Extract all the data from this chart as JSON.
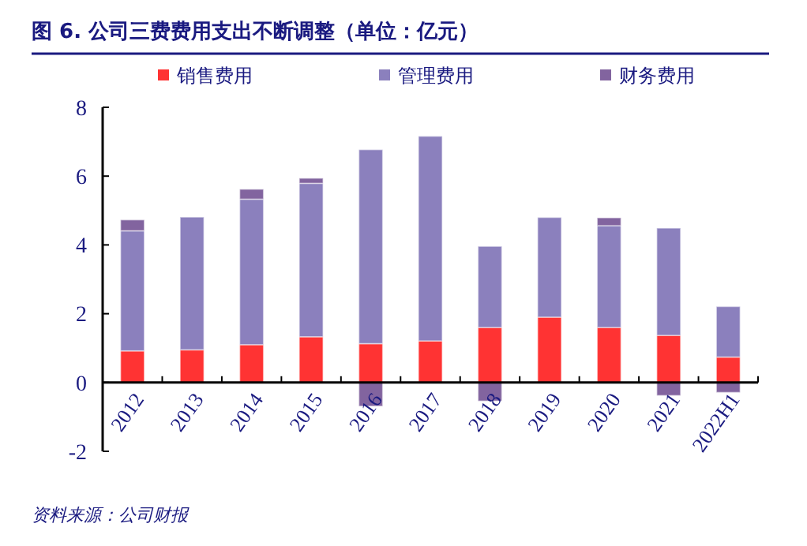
{
  "chart_data": {
    "type": "bar",
    "stacked": true,
    "title": "图 6.  公司三费费用支出不断调整（单位：亿元）",
    "categories": [
      "2012",
      "2013",
      "2014",
      "2015",
      "2016",
      "2017",
      "2018",
      "2019",
      "2020",
      "2021",
      "2022H1"
    ],
    "series": [
      {
        "name": "销售费用",
        "color": "#ff3333",
        "values": [
          0.92,
          0.95,
          1.1,
          1.33,
          1.13,
          1.21,
          1.6,
          1.9,
          1.6,
          1.37,
          0.74
        ]
      },
      {
        "name": "管理费用",
        "color": "#8b80bd",
        "values": [
          3.49,
          3.86,
          4.23,
          4.46,
          5.64,
          5.95,
          2.36,
          2.9,
          2.96,
          3.12,
          1.47
        ]
      },
      {
        "name": "财务费用",
        "color": "#82649f",
        "values": [
          0.32,
          0,
          0.29,
          0.15,
          -0.69,
          0,
          -0.54,
          0,
          0.23,
          -0.38,
          -0.29
        ]
      }
    ],
    "ylim": [
      -2,
      8
    ],
    "yticks": [
      -2,
      0,
      2,
      4,
      6,
      8
    ],
    "grid": false,
    "legend": "top",
    "annotations": [
      "资料来源：公司财报"
    ]
  }
}
